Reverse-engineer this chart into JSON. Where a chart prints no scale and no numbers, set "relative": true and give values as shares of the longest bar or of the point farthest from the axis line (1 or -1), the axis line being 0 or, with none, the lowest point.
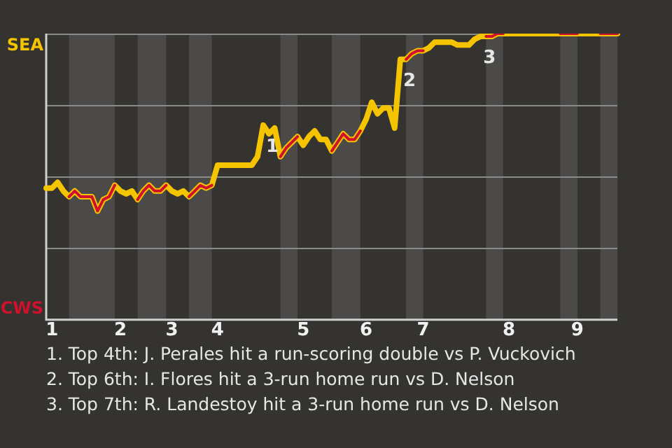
{
  "chart_data": {
    "type": "line",
    "relative": true,
    "categories": [
      null,
      "1",
      null,
      null,
      null,
      null,
      null,
      null,
      null,
      null,
      null,
      null,
      null,
      "2",
      null,
      null,
      null,
      null,
      null,
      null,
      null,
      null,
      "3",
      null,
      null,
      null,
      null,
      null,
      null,
      null,
      "4",
      null,
      null,
      null,
      null,
      null,
      null,
      null,
      null,
      null,
      null,
      null,
      null,
      null,
      null,
      "5",
      null,
      null,
      null,
      null,
      null,
      null,
      null,
      null,
      null,
      null,
      "6",
      null,
      null,
      null,
      null,
      null,
      null,
      null,
      null,
      null,
      "7",
      null,
      null,
      null,
      null,
      null,
      null,
      null,
      null,
      null,
      null,
      null,
      null,
      null,
      null,
      "8",
      null,
      null,
      null,
      null,
      null,
      null,
      null,
      null,
      null,
      null,
      null,
      "9",
      null,
      null,
      null,
      null,
      null,
      null,
      null
    ],
    "series": [
      {
        "color": "#f5c400",
        "values": [
          0.46,
          0.46,
          0.48,
          0.45,
          0.43,
          0.45,
          0.43,
          0.43,
          0.43,
          0.38,
          0.42,
          0.43,
          0.47,
          0.45,
          0.44,
          0.45,
          0.42,
          0.45,
          0.47,
          0.45,
          0.45,
          0.47,
          0.45,
          0.44,
          0.45,
          0.43,
          0.45,
          0.47,
          0.46,
          0.47,
          0.54,
          0.54,
          0.54,
          0.54,
          0.54,
          0.54,
          0.54,
          0.57,
          0.68,
          0.65,
          0.67,
          0.57,
          0.6,
          0.62,
          0.64,
          0.61,
          0.64,
          0.66,
          0.63,
          0.63,
          0.59,
          0.62,
          0.65,
          0.63,
          0.63,
          0.66,
          0.7,
          0.76,
          0.72,
          0.74,
          0.74,
          0.67,
          0.91,
          0.91,
          0.93,
          0.94,
          0.94,
          0.95,
          0.97,
          0.97,
          0.97,
          0.97,
          0.96,
          0.96,
          0.96,
          0.98,
          0.99,
          0.99,
          0.99,
          1.0,
          1.0,
          1.0,
          1.0,
          1.0,
          1.0,
          1.0,
          1.0,
          1.0,
          1.0,
          1.0,
          1.0,
          1.0,
          1.0,
          1.0,
          1.0,
          1.0,
          1.0,
          1.0,
          1.0,
          1.0,
          1.0
        ]
      },
      {
        "color": "#d0102c",
        "values": [
          null,
          null,
          null,
          null,
          0.43,
          0.45,
          0.43,
          0.43,
          0.43,
          0.38,
          0.42,
          0.43,
          0.47,
          null,
          null,
          null,
          0.42,
          0.45,
          0.47,
          0.45,
          0.45,
          0.47,
          null,
          null,
          null,
          0.43,
          0.45,
          0.47,
          0.46,
          0.47,
          null,
          null,
          null,
          null,
          null,
          null,
          null,
          null,
          null,
          null,
          null,
          0.57,
          0.6,
          0.62,
          0.64,
          null,
          null,
          null,
          null,
          null,
          0.59,
          0.62,
          0.65,
          0.63,
          0.63,
          0.66,
          null,
          null,
          null,
          null,
          null,
          null,
          null,
          0.91,
          0.93,
          0.94,
          0.94,
          null,
          null,
          null,
          null,
          null,
          null,
          null,
          null,
          null,
          null,
          0.99,
          0.99,
          1.0,
          1.0,
          null,
          null,
          null,
          null,
          null,
          null,
          null,
          null,
          null,
          1.0,
          1.0,
          1.0,
          1.0,
          null,
          null,
          null,
          1.0,
          1.0,
          1.0,
          1.0
        ]
      }
    ],
    "grid": "y",
    "legend": false,
    "marker": "none",
    "line_style": "solid",
    "annotations": [
      "SEA",
      "CWS",
      {
        "text": "1",
        "y": 0.68
      },
      {
        "text": "2",
        "y": 0.91
      },
      {
        "text": "3",
        "y": 0.99
      },
      "1. Top 4th: J. Perales hit a run-scoring double vs P. Vuckovich",
      "2. Top 6th: I. Flores hit a 3-run home run vs D. Nelson",
      "3. Top 7th: R. Landestoy hit a 3-run home run vs D. Nelson"
    ]
  }
}
